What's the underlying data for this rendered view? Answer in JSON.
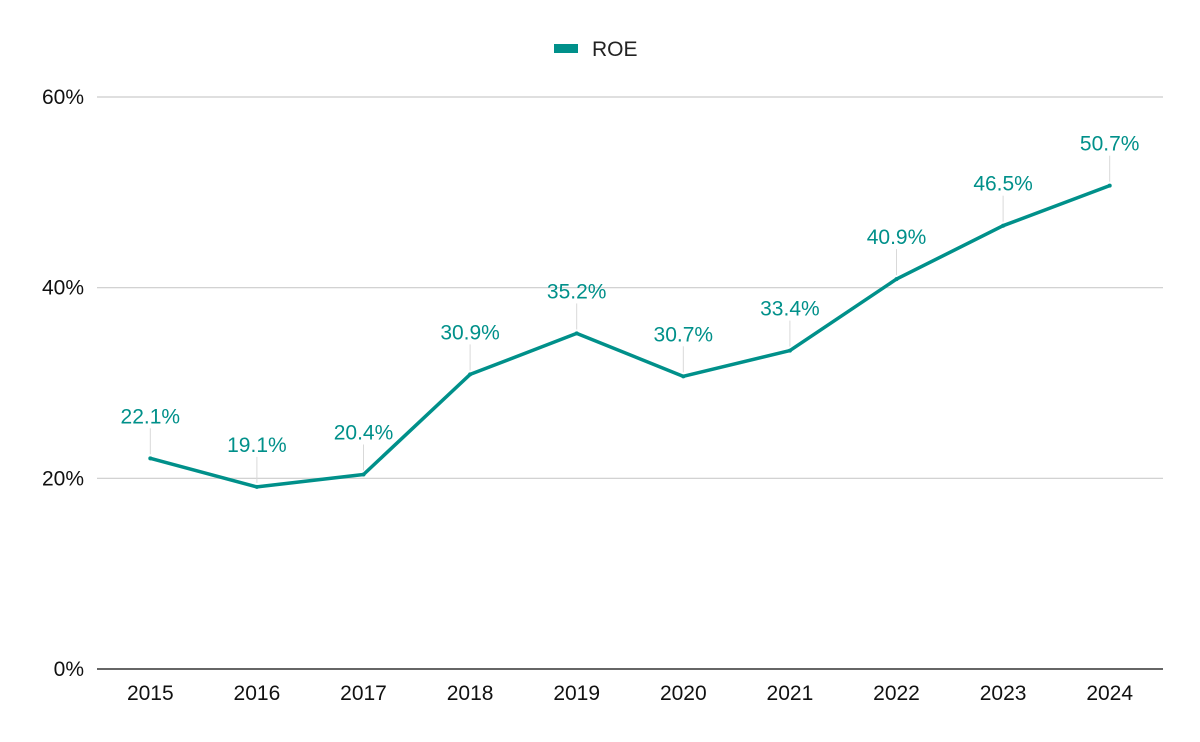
{
  "chart_data": {
    "type": "line",
    "title": "",
    "xlabel": "",
    "ylabel": "",
    "categories": [
      "2015",
      "2016",
      "2017",
      "2018",
      "2019",
      "2020",
      "2021",
      "2022",
      "2023",
      "2024"
    ],
    "series": [
      {
        "name": "ROE",
        "values": [
          22.1,
          19.1,
          20.4,
          30.9,
          35.2,
          30.7,
          33.4,
          40.9,
          46.5,
          50.7
        ],
        "labels": [
          "22.1%",
          "19.1%",
          "20.4%",
          "30.9%",
          "35.2%",
          "30.7%",
          "33.4%",
          "40.9%",
          "46.5%",
          "50.7%"
        ],
        "color": "#00908a"
      }
    ],
    "ylim": [
      0,
      60
    ],
    "yticks": [
      0,
      20,
      40,
      60
    ],
    "ytick_labels": [
      "0%",
      "20%",
      "40%",
      "60%"
    ],
    "grid": true,
    "legend_position": "top-center",
    "colors": {
      "series": "#00908a",
      "grid": "#cccccc",
      "axis": "#333333",
      "leader": "#d9d9d9"
    }
  }
}
